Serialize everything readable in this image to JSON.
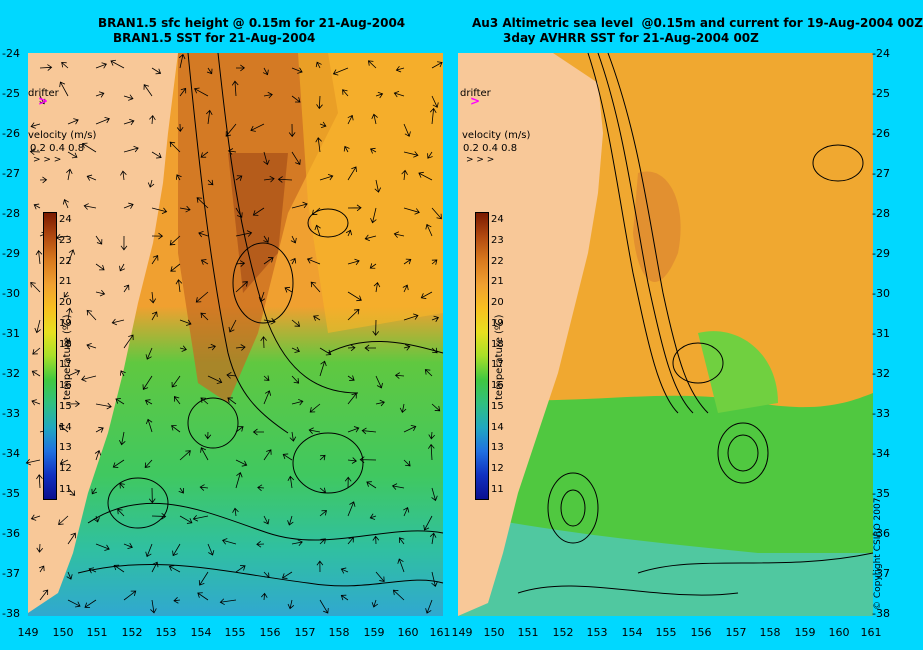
{
  "titles": {
    "left_line1": "BRAN1.5 sfc height @ 0.15m for 21-Aug-2004",
    "left_line2": "BRAN1.5 SST for 21-Aug-2004",
    "right_line1": "Au3 Altimetric sea level  @0.15m and current for 19-Aug-2004 00Z",
    "right_line2": "3day AVHRR SST for 21-Aug-2004 00Z"
  },
  "y_ticks": [
    "-24",
    "-25",
    "-26",
    "-27",
    "-28",
    "-29",
    "-30",
    "-31",
    "-32",
    "-33",
    "-34",
    "-35",
    "-36",
    "-37",
    "-38"
  ],
  "x_ticks": [
    "149",
    "150",
    "151",
    "152",
    "153",
    "154",
    "155",
    "156",
    "157",
    "158",
    "159",
    "160",
    "161"
  ],
  "legend": {
    "drifter": "drifter",
    "drifter_symbol": ">",
    "velocity_label": "velocity (m/s)",
    "velocity_values": "0.2 0.4 0.8",
    "velocity_arrows": "> > >"
  },
  "colorbar": {
    "title": "temperature (ºC)",
    "ticks": [
      "24",
      "23",
      "22",
      "21",
      "20",
      "19",
      "18",
      "17",
      "16",
      "15",
      "14",
      "13",
      "12",
      "11"
    ],
    "colors": [
      "#7a1a00",
      "#b24a10",
      "#d97a1e",
      "#f0a030",
      "#f8c020",
      "#e8e020",
      "#a8e028",
      "#40c840",
      "#30c080",
      "#20a8c0",
      "#2070e0",
      "#1030c0",
      "#0a1090"
    ]
  },
  "copyright": "© Copyright CSIRO 2007"
}
